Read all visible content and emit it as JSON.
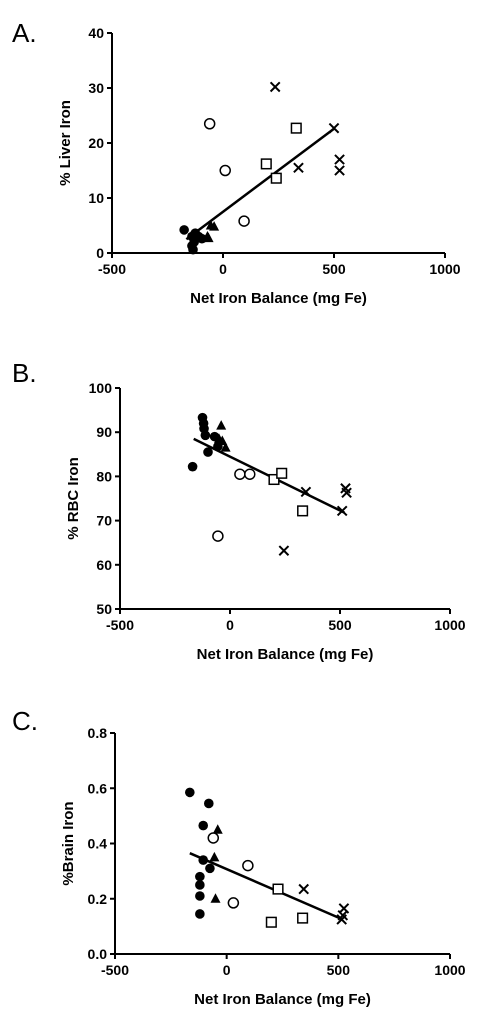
{
  "chart_data": [
    {
      "panel_label": "A.",
      "type": "scatter",
      "xlabel": "Net Iron Balance (mg Fe)",
      "ylabel": "% Liver Iron",
      "xlim": [
        -500,
        1000
      ],
      "ylim": [
        0,
        40
      ],
      "x_ticks": [
        -500,
        0,
        500,
        1000
      ],
      "y_ticks": [
        0,
        10,
        20,
        30,
        40
      ],
      "grid": false,
      "series": [
        {
          "marker": "circle-filled",
          "points": [
            [
              -175,
              4.2
            ],
            [
              -140,
              3.0
            ],
            [
              -125,
              3.6
            ],
            [
              -110,
              3.0
            ],
            [
              -95,
              2.6
            ],
            [
              -130,
              2.0
            ],
            [
              -140,
              1.3
            ],
            [
              -135,
              0.6
            ]
          ]
        },
        {
          "marker": "triangle-filled",
          "points": [
            [
              -70,
              3.0
            ],
            [
              -55,
              5.0
            ],
            [
              -40,
              4.8
            ],
            [
              -65,
              2.7
            ]
          ]
        },
        {
          "marker": "circle-open",
          "points": [
            [
              -60,
              23.5
            ],
            [
              10,
              15.0
            ],
            [
              95,
              5.8
            ]
          ]
        },
        {
          "marker": "square-open",
          "points": [
            [
              195,
              16.2
            ],
            [
              240,
              13.6
            ],
            [
              330,
              22.7
            ]
          ]
        },
        {
          "marker": "x",
          "points": [
            [
              235,
              30.2
            ],
            [
              340,
              15.5
            ],
            [
              500,
              22.7
            ],
            [
              525,
              17.0
            ],
            [
              525,
              15.0
            ]
          ]
        }
      ],
      "regression": {
        "x": [
          -165,
          500
        ],
        "y": [
          2.5,
          22.6
        ]
      }
    },
    {
      "panel_label": "B.",
      "type": "scatter",
      "xlabel": "Net Iron Balance (mg Fe)",
      "ylabel": "% RBC Iron",
      "xlim": [
        -500,
        1000
      ],
      "ylim": [
        50,
        100
      ],
      "x_ticks": [
        -500,
        0,
        500,
        1000
      ],
      "y_ticks": [
        50,
        60,
        70,
        80,
        90,
        100
      ],
      "grid": false,
      "series": [
        {
          "marker": "circle-filled",
          "points": [
            [
              -170,
              82.2
            ],
            [
              -125,
              93.3
            ],
            [
              -120,
              92.0
            ],
            [
              -118,
              90.8
            ],
            [
              -112,
              89.3
            ],
            [
              -100,
              85.5
            ],
            [
              -70,
              89.0
            ],
            [
              -55,
              86.8
            ]
          ]
        },
        {
          "marker": "triangle-filled",
          "points": [
            [
              -40,
              91.5
            ],
            [
              -20,
              86.5
            ],
            [
              -35,
              88.0
            ],
            [
              -50,
              88.5
            ]
          ]
        },
        {
          "marker": "circle-open",
          "points": [
            [
              -55,
              66.5
            ],
            [
              45,
              80.5
            ],
            [
              90,
              80.5
            ]
          ]
        },
        {
          "marker": "square-open",
          "points": [
            [
              200,
              79.3
            ],
            [
              235,
              80.7
            ],
            [
              330,
              72.2
            ]
          ]
        },
        {
          "marker": "x",
          "points": [
            [
              245,
              63.2
            ],
            [
              345,
              76.5
            ],
            [
              510,
              72.2
            ],
            [
              525,
              77.3
            ],
            [
              530,
              76.3
            ]
          ]
        }
      ],
      "regression": {
        "x": [
          -165,
          520
        ],
        "y": [
          88.5,
          71.8
        ]
      }
    },
    {
      "panel_label": "C.",
      "type": "scatter",
      "xlabel": "Net Iron Balance (mg Fe)",
      "ylabel": "%Brain Iron",
      "xlim": [
        -500,
        1000
      ],
      "ylim": [
        0.0,
        0.8
      ],
      "x_ticks": [
        -500,
        0,
        500,
        1000
      ],
      "y_ticks": [
        0.0,
        0.2,
        0.4,
        0.6,
        0.8
      ],
      "y_tick_labels": [
        "0.0",
        "0.2",
        "0.4",
        "0.6",
        "0.8"
      ],
      "grid": false,
      "series": [
        {
          "marker": "circle-filled",
          "points": [
            [
              -165,
              0.585
            ],
            [
              -80,
              0.545
            ],
            [
              -105,
              0.465
            ],
            [
              -105,
              0.34
            ],
            [
              -75,
              0.31
            ],
            [
              -120,
              0.28
            ],
            [
              -120,
              0.25
            ],
            [
              -120,
              0.21
            ],
            [
              -120,
              0.145
            ]
          ]
        },
        {
          "marker": "triangle-filled",
          "points": [
            [
              -40,
              0.45
            ],
            [
              -55,
              0.35
            ],
            [
              -50,
              0.2
            ]
          ]
        },
        {
          "marker": "circle-open",
          "points": [
            [
              -60,
              0.42
            ],
            [
              95,
              0.32
            ],
            [
              30,
              0.185
            ]
          ]
        },
        {
          "marker": "square-open",
          "points": [
            [
              200,
              0.115
            ],
            [
              230,
              0.235
            ],
            [
              340,
              0.13
            ]
          ]
        },
        {
          "marker": "x",
          "points": [
            [
              345,
              0.235
            ],
            [
              520,
              0.14
            ],
            [
              515,
              0.125
            ],
            [
              525,
              0.165
            ]
          ]
        }
      ],
      "regression": {
        "x": [
          -165,
          520
        ],
        "y": [
          0.365,
          0.125
        ]
      }
    }
  ]
}
